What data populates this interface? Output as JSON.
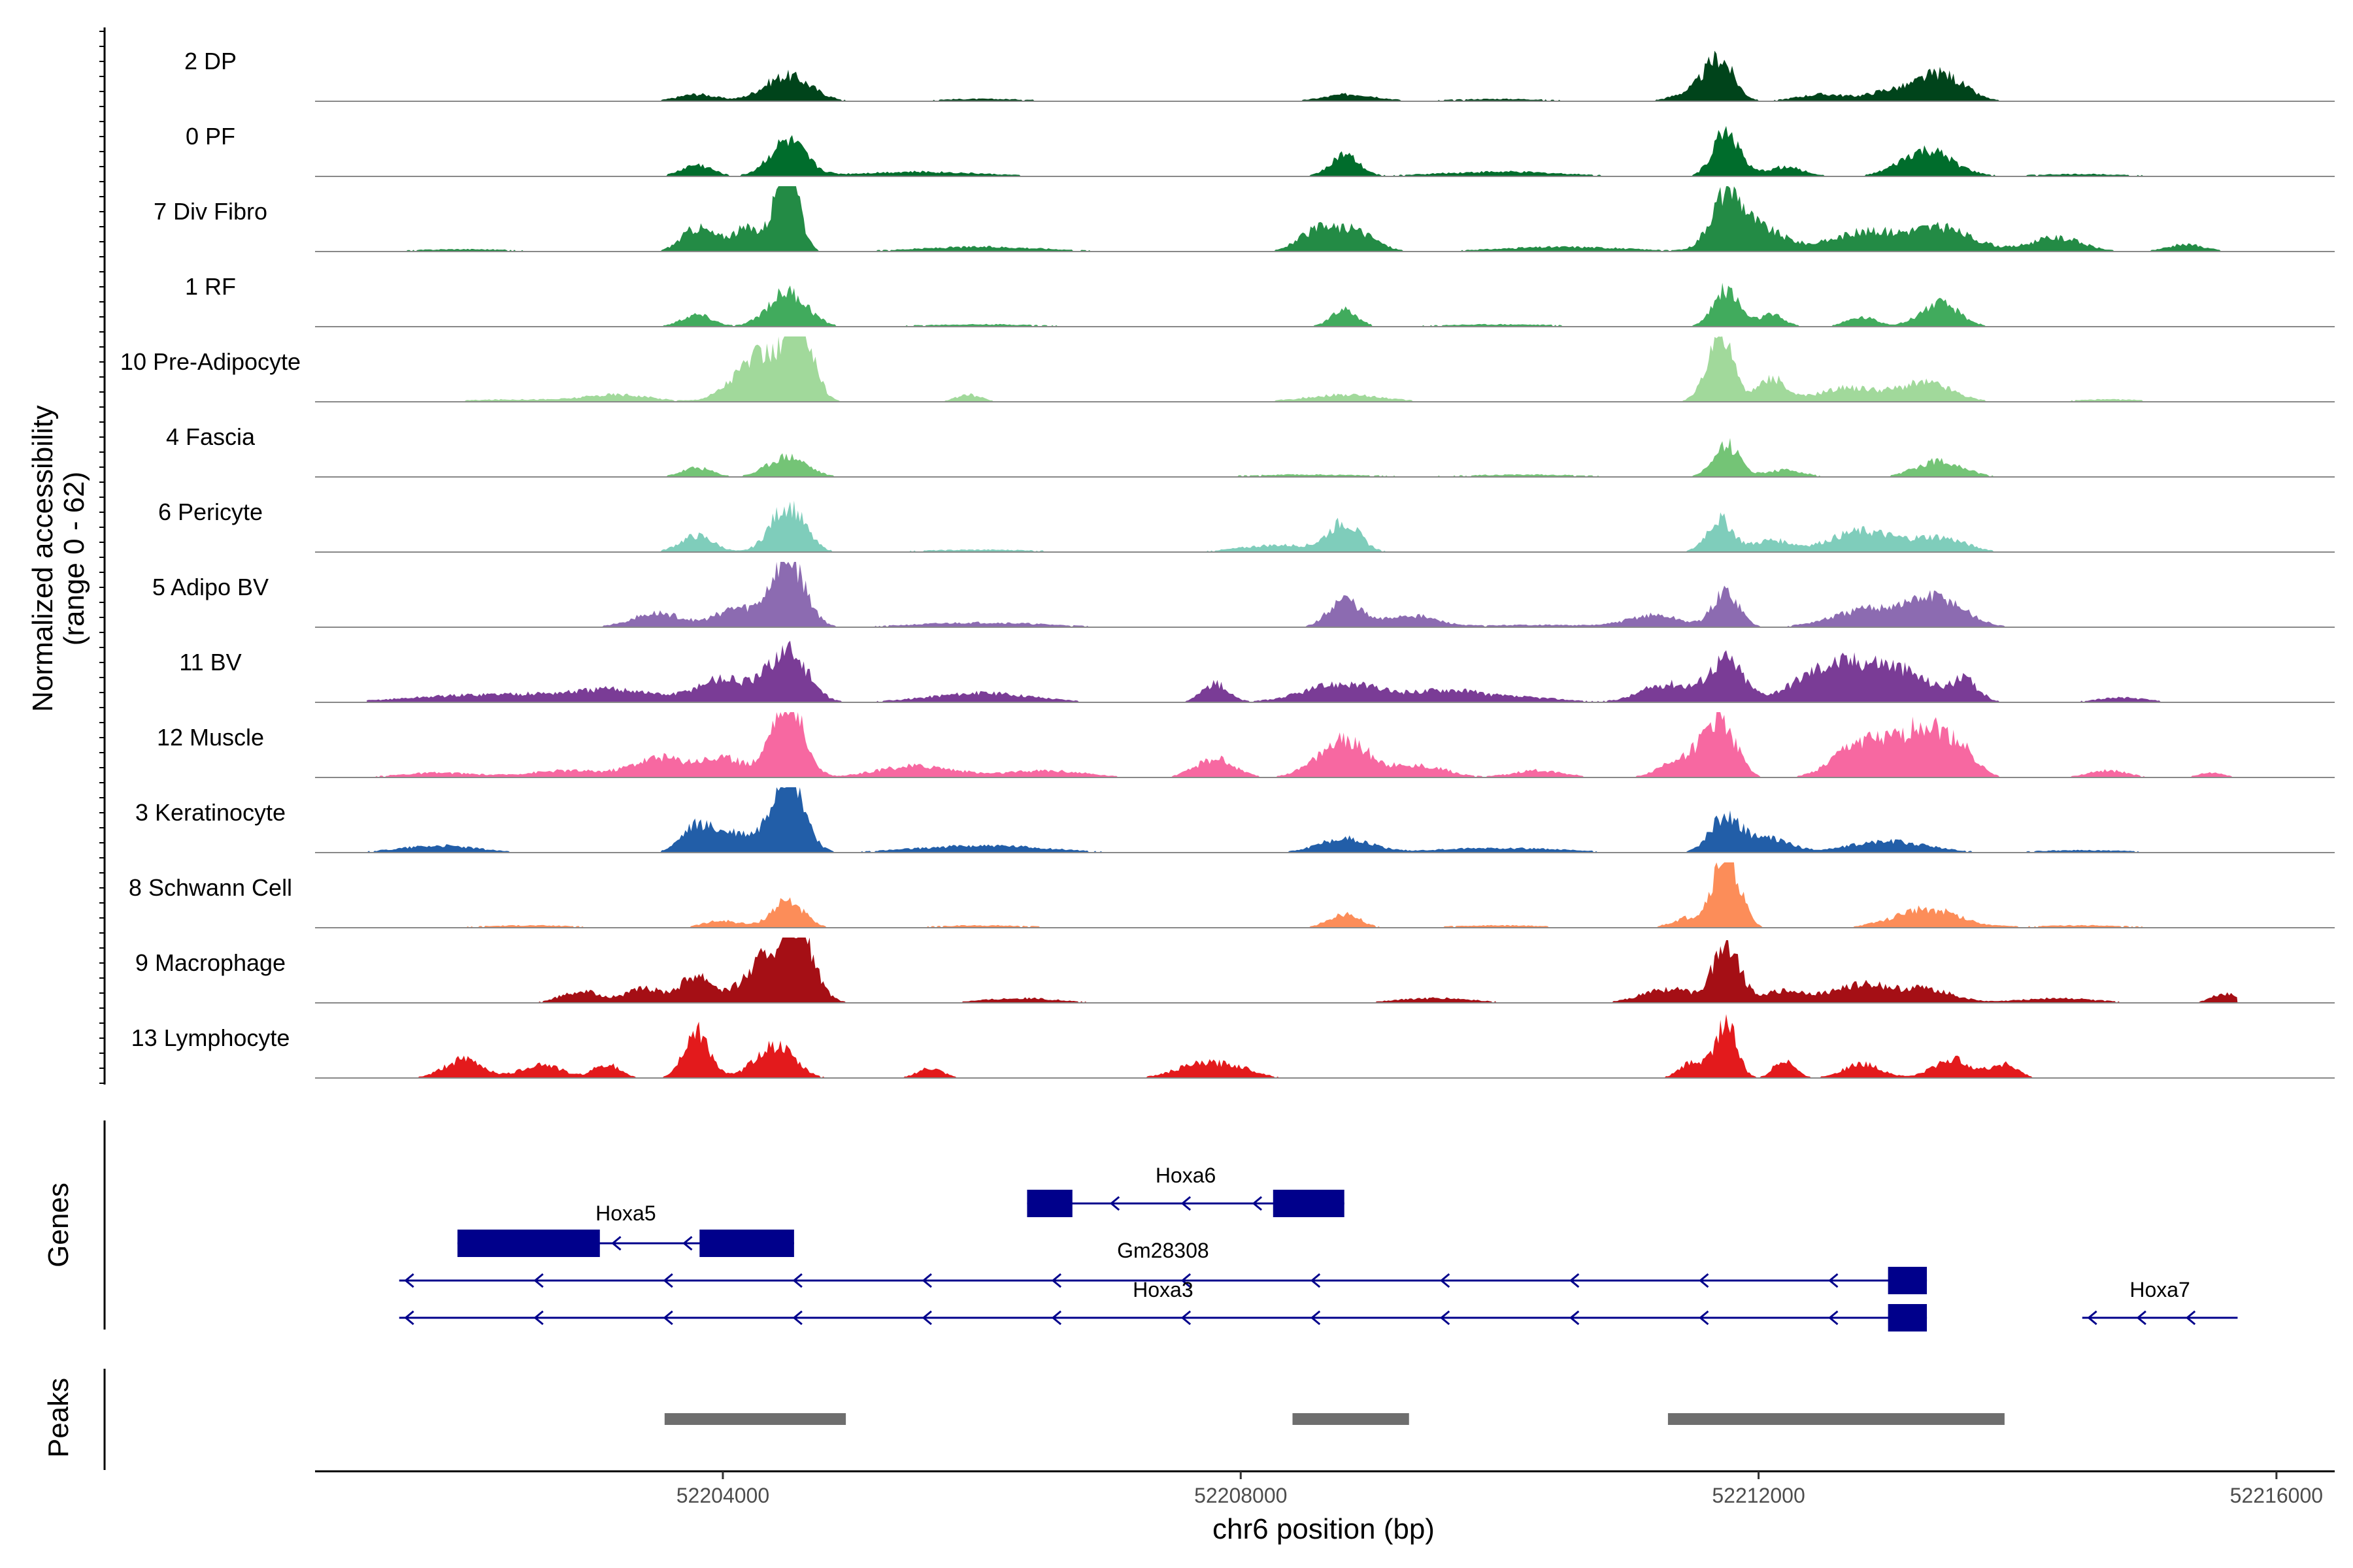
{
  "chart_data": {
    "type": "area",
    "title": "",
    "ylabel_line1": "Normalized accessibility",
    "ylabel_line2": "(range 0 - 62)",
    "yrange": [
      0,
      62
    ],
    "xlabel": "chr6 position (bp)",
    "xlim": [
      52200850,
      52216450
    ],
    "xticks": [
      {
        "value": 52204000,
        "label": "52204000"
      },
      {
        "value": 52208000,
        "label": "52208000"
      },
      {
        "value": 52212000,
        "label": "52212000"
      },
      {
        "value": 52216000,
        "label": "52216000"
      }
    ],
    "series": [
      {
        "name": "2 DP",
        "color": "#00441b",
        "peaks": [
          [
            52204500,
            11,
            180
          ],
          [
            52203800,
            3,
            150
          ],
          [
            52208850,
            3,
            200
          ],
          [
            52211700,
            17,
            110
          ],
          [
            52211500,
            4,
            150
          ],
          [
            52212500,
            3,
            200
          ],
          [
            52213000,
            4,
            150
          ],
          [
            52213400,
            12,
            180
          ],
          [
            52210000,
            1,
            400
          ],
          [
            52206000,
            1,
            400
          ]
        ]
      },
      {
        "name": "0 PF",
        "color": "#006d2c",
        "peaks": [
          [
            52204500,
            15,
            140
          ],
          [
            52203800,
            5,
            120
          ],
          [
            52208800,
            9,
            110
          ],
          [
            52211750,
            20,
            100
          ],
          [
            52212200,
            4,
            150
          ],
          [
            52213300,
            11,
            200
          ],
          [
            52205500,
            2,
            500
          ],
          [
            52210000,
            2,
            500
          ],
          [
            52214500,
            1,
            400
          ]
        ]
      },
      {
        "name": "7 Div Fibro",
        "color": "#238b45",
        "peaks": [
          [
            52204500,
            46,
            80
          ],
          [
            52204200,
            10,
            150
          ],
          [
            52203800,
            10,
            120
          ],
          [
            52208600,
            9,
            150
          ],
          [
            52208900,
            8,
            150
          ],
          [
            52211750,
            22,
            120
          ],
          [
            52212000,
            10,
            200
          ],
          [
            52212800,
            8,
            250
          ],
          [
            52213400,
            10,
            250
          ],
          [
            52214300,
            6,
            200
          ],
          [
            52215300,
            3,
            150
          ],
          [
            52202000,
            1,
            400
          ],
          [
            52206000,
            2,
            500
          ],
          [
            52210500,
            2,
            500
          ]
        ]
      },
      {
        "name": "1 RF",
        "color": "#41ab5d",
        "peaks": [
          [
            52204500,
            15,
            150
          ],
          [
            52203800,
            5,
            120
          ],
          [
            52208800,
            7,
            100
          ],
          [
            52211750,
            16,
            100
          ],
          [
            52212100,
            5,
            100
          ],
          [
            52212800,
            4,
            120
          ],
          [
            52213400,
            10,
            150
          ],
          [
            52206000,
            1,
            500
          ],
          [
            52210000,
            1,
            500
          ]
        ]
      },
      {
        "name": "10 Pre-Adipocyte",
        "color": "#a1d99b",
        "peaks": [
          [
            52204300,
            20,
            200
          ],
          [
            52204600,
            30,
            100
          ],
          [
            52211700,
            30,
            100
          ],
          [
            52212100,
            10,
            100
          ],
          [
            52212700,
            6,
            250
          ],
          [
            52213300,
            8,
            200
          ],
          [
            52203200,
            3,
            250
          ],
          [
            52202400,
            1,
            400
          ],
          [
            52205900,
            3,
            100
          ],
          [
            52208800,
            3,
            300
          ],
          [
            52214700,
            1,
            300
          ]
        ]
      },
      {
        "name": "4 Fascia",
        "color": "#74c476",
        "peaks": [
          [
            52204500,
            9,
            150
          ],
          [
            52203800,
            4,
            120
          ],
          [
            52211750,
            14,
            100
          ],
          [
            52212200,
            3,
            150
          ],
          [
            52213400,
            7,
            180
          ],
          [
            52208500,
            1,
            500
          ],
          [
            52210200,
            1,
            500
          ]
        ]
      },
      {
        "name": "6 Pericyte",
        "color": "#7fcdbb",
        "peaks": [
          [
            52204500,
            20,
            130
          ],
          [
            52203800,
            7,
            130
          ],
          [
            52208300,
            3,
            300
          ],
          [
            52208800,
            12,
            120
          ],
          [
            52211700,
            14,
            100
          ],
          [
            52212100,
            5,
            150
          ],
          [
            52212800,
            9,
            250
          ],
          [
            52213400,
            6,
            200
          ],
          [
            52206000,
            1,
            500
          ]
        ]
      },
      {
        "name": "5 Adipo BV",
        "color": "#8c6bb1",
        "peaks": [
          [
            52204500,
            30,
            130
          ],
          [
            52204100,
            8,
            150
          ],
          [
            52203500,
            6,
            200
          ],
          [
            52208800,
            12,
            120
          ],
          [
            52209300,
            5,
            200
          ],
          [
            52211750,
            15,
            100
          ],
          [
            52211200,
            5,
            200
          ],
          [
            52212900,
            8,
            300
          ],
          [
            52213400,
            11,
            200
          ],
          [
            52206000,
            2,
            500
          ],
          [
            52210300,
            1,
            500
          ]
        ]
      },
      {
        "name": "11 BV",
        "color": "#7a3c96",
        "peaks": [
          [
            52204500,
            22,
            150
          ],
          [
            52204000,
            10,
            200
          ],
          [
            52203200,
            5,
            300
          ],
          [
            52202500,
            3,
            400
          ],
          [
            52201800,
            2,
            400
          ],
          [
            52206000,
            4,
            400
          ],
          [
            52207800,
            8,
            100
          ],
          [
            52208800,
            8,
            300
          ],
          [
            52209600,
            5,
            250
          ],
          [
            52211750,
            18,
            130
          ],
          [
            52211300,
            8,
            200
          ],
          [
            52212500,
            12,
            250
          ],
          [
            52213000,
            15,
            300
          ],
          [
            52213600,
            8,
            100
          ],
          [
            52214800,
            2,
            200
          ],
          [
            52210200,
            2,
            300
          ]
        ]
      },
      {
        "name": "12 Muscle",
        "color": "#f768a1",
        "peaks": [
          [
            52204500,
            35,
            120
          ],
          [
            52204000,
            8,
            200
          ],
          [
            52203500,
            8,
            200
          ],
          [
            52202800,
            3,
            300
          ],
          [
            52201800,
            2,
            300
          ],
          [
            52205500,
            5,
            300
          ],
          [
            52206500,
            3,
            300
          ],
          [
            52207800,
            8,
            150
          ],
          [
            52208800,
            16,
            200
          ],
          [
            52209400,
            5,
            200
          ],
          [
            52210300,
            3,
            200
          ],
          [
            52211700,
            25,
            120
          ],
          [
            52211400,
            8,
            150
          ],
          [
            52212800,
            15,
            200
          ],
          [
            52213300,
            22,
            200
          ],
          [
            52213600,
            6,
            100
          ],
          [
            52214700,
            3,
            150
          ],
          [
            52215500,
            2,
            100
          ]
        ]
      },
      {
        "name": "3 Keratinocyte",
        "color": "#225ea8",
        "peaks": [
          [
            52204500,
            36,
            120
          ],
          [
            52203800,
            11,
            120
          ],
          [
            52204100,
            8,
            150
          ],
          [
            52208800,
            6,
            200
          ],
          [
            52211750,
            16,
            120
          ],
          [
            52212100,
            6,
            150
          ],
          [
            52213000,
            5,
            300
          ],
          [
            52201800,
            3,
            300
          ],
          [
            52206000,
            3,
            500
          ],
          [
            52210000,
            2,
            500
          ],
          [
            52214500,
            1,
            400
          ]
        ]
      },
      {
        "name": "8 Schwann Cell",
        "color": "#fc8d59",
        "peaks": [
          [
            52204500,
            12,
            120
          ],
          [
            52204000,
            3,
            150
          ],
          [
            52208800,
            6,
            120
          ],
          [
            52211750,
            32,
            100
          ],
          [
            52211450,
            4,
            120
          ],
          [
            52213300,
            8,
            250
          ],
          [
            52202500,
            1,
            400
          ],
          [
            52206000,
            1,
            400
          ],
          [
            52210000,
            1,
            400
          ],
          [
            52214500,
            1,
            400
          ]
        ]
      },
      {
        "name": "9 Macrophage",
        "color": "#a50f15",
        "peaks": [
          [
            52204400,
            22,
            200
          ],
          [
            52204600,
            20,
            100
          ],
          [
            52203800,
            12,
            120
          ],
          [
            52203400,
            6,
            150
          ],
          [
            52202900,
            5,
            150
          ],
          [
            52211750,
            25,
            100
          ],
          [
            52211300,
            6,
            200
          ],
          [
            52212200,
            5,
            200
          ],
          [
            52212800,
            8,
            200
          ],
          [
            52213300,
            6,
            200
          ],
          [
            52215600,
            4,
            100
          ],
          [
            52206300,
            2,
            300
          ],
          [
            52209500,
            2,
            300
          ],
          [
            52214300,
            2,
            300
          ]
        ]
      },
      {
        "name": "13 Lymphocyte",
        "color": "#e31a1c",
        "peaks": [
          [
            52203800,
            20,
            100
          ],
          [
            52204400,
            14,
            150
          ],
          [
            52202000,
            8,
            150
          ],
          [
            52202600,
            6,
            150
          ],
          [
            52203100,
            6,
            100
          ],
          [
            52205600,
            4,
            100
          ],
          [
            52207700,
            6,
            200
          ],
          [
            52211750,
            24,
            80
          ],
          [
            52211500,
            7,
            100
          ],
          [
            52212200,
            8,
            80
          ],
          [
            52212800,
            6,
            150
          ],
          [
            52213500,
            8,
            150
          ],
          [
            52213900,
            6,
            100
          ],
          [
            52208000,
            3,
            150
          ]
        ]
      }
    ],
    "genes_label": "Genes",
    "genes": [
      {
        "name": "Hoxa5",
        "start": 52201950,
        "end": 52204550,
        "strand": "-",
        "row": 1,
        "exons": [
          [
            52201950,
            52203050
          ],
          [
            52203820,
            52204550
          ]
        ]
      },
      {
        "name": "Hoxa6",
        "start": 52206350,
        "end": 52208800,
        "strand": "-",
        "row": 0,
        "exons": [
          [
            52206350,
            52206700
          ],
          [
            52208250,
            52208800
          ]
        ]
      },
      {
        "name": "Gm28308",
        "start": 52201500,
        "end": 52213300,
        "strand": "-",
        "row": 2,
        "exons": [
          [
            52213000,
            52213300
          ]
        ]
      },
      {
        "name": "Hoxa3",
        "start": 52201500,
        "end": 52213300,
        "strand": "-",
        "row": 3,
        "exons": [
          [
            52213000,
            52213300
          ]
        ]
      },
      {
        "name": "Hoxa7",
        "start": 52214500,
        "end": 52215700,
        "strand": "-",
        "row": 3,
        "exons": []
      }
    ],
    "peaks_label": "Peaks",
    "peak_regions": [
      [
        52203550,
        52204950
      ],
      [
        52208400,
        52209300
      ],
      [
        52211300,
        52213900
      ]
    ]
  }
}
